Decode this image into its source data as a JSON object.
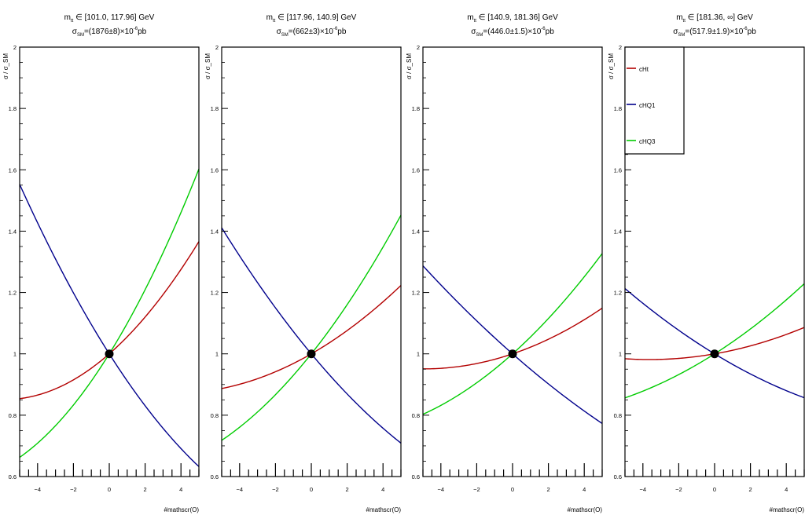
{
  "colors": {
    "cHt": "#b30000",
    "cHQ1": "#00008c",
    "cHQ3": "#00cc00",
    "axis": "#000000",
    "marker": "#000000"
  },
  "chart_data": [
    {
      "type": "line",
      "title_line1": "m_tt ∈ [101.0, 117.96] GeV",
      "title_parts": {
        "m": "m",
        "tt": "tt",
        "range": " ∈ [101.0, 117.96] GeV",
        "sigma": "σ",
        "sm": "SM",
        "value_pre": "=(1876±8)×10",
        "exp": "-6",
        "unit": "pb"
      },
      "title_line2": "σ_SM=(1876±8)×10^-6 pb",
      "xlabel": "#mathscr(O)",
      "ylabel": "σ / σ_SM",
      "xlim": [
        -5,
        5
      ],
      "ylim": [
        0.6,
        2.0
      ],
      "yticks": [
        "0.6",
        "0.8",
        "1",
        "1.2",
        "1.4",
        "1.6",
        "1.8",
        "2"
      ],
      "xticks": [
        "−4",
        "−2",
        "0",
        "2",
        "4"
      ],
      "series": [
        {
          "name": "cHt",
          "quad": [
            1.0,
            0.0512,
            0.0044
          ]
        },
        {
          "name": "cHQ1",
          "quad": [
            1.0,
            -0.092,
            0.0037
          ]
        },
        {
          "name": "cHQ3",
          "quad": [
            1.0,
            0.094,
            0.0053
          ]
        }
      ],
      "point": {
        "x": 0,
        "y": 1
      }
    },
    {
      "type": "line",
      "title_parts": {
        "m": "m",
        "tt": "tt",
        "range": " ∈ [117.96, 140.9] GeV",
        "sigma": "σ",
        "sm": "SM",
        "value_pre": "=(662±3)×10",
        "exp": "-6",
        "unit": "pb"
      },
      "title_line2": "σ_SM=(662±3)×10^-6 pb",
      "xlabel": "#mathscr(O)",
      "ylabel": "σ / σ_SM",
      "xlim": [
        -5,
        5
      ],
      "ylim": [
        0.6,
        2.0
      ],
      "yticks": [
        "0.6",
        "0.8",
        "1",
        "1.2",
        "1.4",
        "1.6",
        "1.8",
        "2"
      ],
      "xticks": [
        "−4",
        "−2",
        "0",
        "2",
        "4"
      ],
      "series": [
        {
          "name": "cHt",
          "quad": [
            1.0,
            0.0336,
            0.0022
          ]
        },
        {
          "name": "cHQ1",
          "quad": [
            1.0,
            -0.0702,
            0.0024
          ]
        },
        {
          "name": "cHQ3",
          "quad": [
            1.0,
            0.0734,
            0.0034
          ]
        }
      ],
      "point": {
        "x": 0,
        "y": 1
      }
    },
    {
      "type": "line",
      "title_parts": {
        "m": "m",
        "tt": "tt",
        "range": " ∈ [140.9, 181.36] GeV",
        "sigma": "σ",
        "sm": "SM",
        "value_pre": "=(446.0±1.5)×10",
        "exp": "-6",
        "unit": "pb"
      },
      "title_line2": "σ_SM=(446.0±1.5)×10^-6 pb",
      "xlabel": "#mathscr(O)",
      "ylabel": "σ / σ_SM",
      "xlim": [
        -5,
        5
      ],
      "ylim": [
        0.6,
        2.0
      ],
      "yticks": [
        "0.6",
        "0.8",
        "1",
        "1.2",
        "1.4",
        "1.6",
        "1.8",
        "2"
      ],
      "xticks": [
        "−4",
        "−2",
        "0",
        "2",
        "4"
      ],
      "series": [
        {
          "name": "cHt",
          "quad": [
            1.0,
            0.0198,
            0.002
          ]
        },
        {
          "name": "cHQ1",
          "quad": [
            1.0,
            -0.0514,
            0.0012
          ]
        },
        {
          "name": "cHQ3",
          "quad": [
            1.0,
            0.0524,
            0.0026
          ]
        }
      ],
      "point": {
        "x": 0,
        "y": 1
      }
    },
    {
      "type": "line",
      "title_parts": {
        "m": "m",
        "tt": "tt",
        "range": " ∈ [181.36, ∞] GeV",
        "sigma": "σ",
        "sm": "SM",
        "value_pre": "=(517.9±1.9)×10",
        "exp": "-6",
        "unit": "pb"
      },
      "title_line2": "σ_SM=(517.9±1.9)×10^-6 pb",
      "xlabel": "#mathscr(O)",
      "ylabel": "σ / σ_SM",
      "xlim": [
        -5,
        5
      ],
      "ylim": [
        0.6,
        2.0
      ],
      "yticks": [
        "0.6",
        "0.8",
        "1",
        "1.2",
        "1.4",
        "1.6",
        "1.8",
        "2"
      ],
      "xticks": [
        "−4",
        "−2",
        "0",
        "2",
        "4"
      ],
      "series": [
        {
          "name": "cHt",
          "quad": [
            1.0,
            0.0102,
            0.0014
          ]
        },
        {
          "name": "cHQ1",
          "quad": [
            1.0,
            -0.0356,
            0.0014
          ]
        },
        {
          "name": "cHQ3",
          "quad": [
            1.0,
            0.0372,
            0.0017
          ]
        }
      ],
      "point": {
        "x": 0,
        "y": 1
      },
      "legend": {
        "position": "top-left",
        "entries": [
          "cHt",
          "cHQ1",
          "cHQ3"
        ]
      }
    }
  ]
}
